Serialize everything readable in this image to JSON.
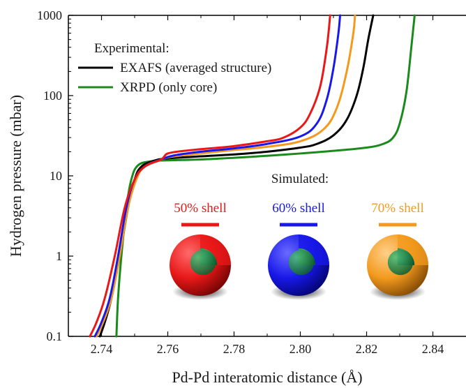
{
  "chart_data": {
    "type": "line",
    "xlabel": "Pd-Pd interatomic distance (Å)",
    "ylabel": "Hydrogen pressure (mbar)",
    "xlim": [
      2.73,
      2.85
    ],
    "ylim": [
      0.1,
      1000
    ],
    "yscale": "log",
    "x_ticks": [
      "2.74",
      "2.76",
      "2.78",
      "2.80",
      "2.82",
      "2.84"
    ],
    "y_ticks": [
      "0.1",
      "1",
      "10",
      "100",
      "1000"
    ],
    "grid": false,
    "legend": {
      "title": "Experimental:",
      "position": "top-left",
      "entries": [
        "EXAFS (averaged structure)",
        "XRPD (only core)"
      ]
    },
    "simulated_title": "Simulated:",
    "series": [
      {
        "name": "EXAFS (averaged structure)",
        "color": "#000000",
        "points": [
          [
            2.7395,
            0.1
          ],
          [
            2.741,
            0.15
          ],
          [
            2.743,
            0.3
          ],
          [
            2.7455,
            1.0
          ],
          [
            2.748,
            4.0
          ],
          [
            2.75,
            9.0
          ],
          [
            2.752,
            13.0
          ],
          [
            2.756,
            15.5
          ],
          [
            2.76,
            16.5
          ],
          [
            2.77,
            17.5
          ],
          [
            2.78,
            18.5
          ],
          [
            2.79,
            20.0
          ],
          [
            2.8,
            22.5
          ],
          [
            2.805,
            25.0
          ],
          [
            2.81,
            32.0
          ],
          [
            2.814,
            50.0
          ],
          [
            2.817,
            100.0
          ],
          [
            2.819,
            220.0
          ],
          [
            2.8205,
            500.0
          ],
          [
            2.822,
            1000.0
          ]
        ]
      },
      {
        "name": "XRPD (only core)",
        "color": "#1a8a1a",
        "points": [
          [
            2.7445,
            0.1
          ],
          [
            2.745,
            0.3
          ],
          [
            2.746,
            1.0
          ],
          [
            2.7475,
            4.0
          ],
          [
            2.749,
            9.0
          ],
          [
            2.751,
            13.5
          ],
          [
            2.755,
            15.2
          ],
          [
            2.76,
            15.6
          ],
          [
            2.77,
            16.0
          ],
          [
            2.78,
            16.8
          ],
          [
            2.79,
            17.8
          ],
          [
            2.8,
            19.0
          ],
          [
            2.81,
            20.5
          ],
          [
            2.82,
            22.5
          ],
          [
            2.825,
            25.0
          ],
          [
            2.828,
            30.0
          ],
          [
            2.83,
            45.0
          ],
          [
            2.832,
            110.0
          ],
          [
            2.8335,
            400.0
          ],
          [
            2.8345,
            1000.0
          ]
        ]
      },
      {
        "name": "50% shell",
        "color": "#e81818",
        "points": [
          [
            2.7365,
            0.1
          ],
          [
            2.7385,
            0.15
          ],
          [
            2.741,
            0.3
          ],
          [
            2.744,
            1.0
          ],
          [
            2.747,
            4.0
          ],
          [
            2.75,
            9.0
          ],
          [
            2.753,
            13.0
          ],
          [
            2.758,
            16.0
          ],
          [
            2.76,
            19.0
          ],
          [
            2.765,
            20.5
          ],
          [
            2.77,
            21.5
          ],
          [
            2.78,
            23.5
          ],
          [
            2.79,
            27.0
          ],
          [
            2.795,
            30.0
          ],
          [
            2.8,
            40.0
          ],
          [
            2.803,
            60.0
          ],
          [
            2.806,
            130.0
          ],
          [
            2.808,
            400.0
          ],
          [
            2.809,
            1000.0
          ]
        ]
      },
      {
        "name": "60% shell",
        "color": "#1818e8",
        "points": [
          [
            2.738,
            0.1
          ],
          [
            2.74,
            0.15
          ],
          [
            2.7425,
            0.3
          ],
          [
            2.745,
            1.0
          ],
          [
            2.7475,
            4.0
          ],
          [
            2.75,
            9.0
          ],
          [
            2.753,
            13.0
          ],
          [
            2.758,
            16.0
          ],
          [
            2.762,
            18.0
          ],
          [
            2.77,
            20.0
          ],
          [
            2.78,
            22.0
          ],
          [
            2.79,
            25.0
          ],
          [
            2.8,
            31.0
          ],
          [
            2.805,
            45.0
          ],
          [
            2.808,
            90.0
          ],
          [
            2.81,
            220.0
          ],
          [
            2.8115,
            600.0
          ],
          [
            2.812,
            1000.0
          ]
        ]
      },
      {
        "name": "70% shell",
        "color": "#f39a1e",
        "points": [
          [
            2.7385,
            0.1
          ],
          [
            2.7405,
            0.15
          ],
          [
            2.743,
            0.3
          ],
          [
            2.7455,
            1.0
          ],
          [
            2.748,
            4.0
          ],
          [
            2.7505,
            9.0
          ],
          [
            2.753,
            13.0
          ],
          [
            2.758,
            16.0
          ],
          [
            2.762,
            17.5
          ],
          [
            2.77,
            19.0
          ],
          [
            2.78,
            21.0
          ],
          [
            2.79,
            23.0
          ],
          [
            2.8,
            27.0
          ],
          [
            2.807,
            38.0
          ],
          [
            2.811,
            70.0
          ],
          [
            2.814,
            200.0
          ],
          [
            2.816,
            600.0
          ],
          [
            2.8165,
            1000.0
          ]
        ]
      }
    ],
    "simulated": [
      {
        "label": "50% shell",
        "color": "#e81818"
      },
      {
        "label": "60% shell",
        "color": "#1818e8"
      },
      {
        "label": "70% shell",
        "color": "#f39a1e"
      }
    ]
  }
}
